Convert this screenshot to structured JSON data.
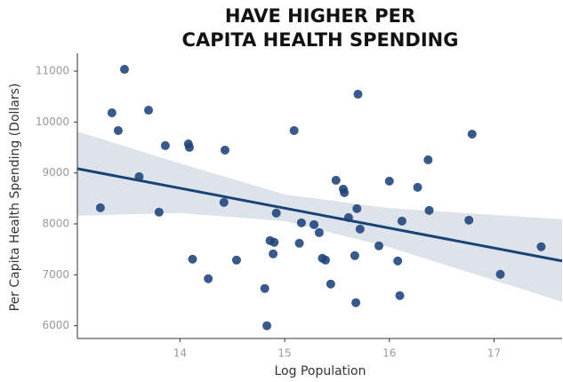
{
  "chart_data": {
    "type": "scatter",
    "title": [
      "HAVE HIGHER PER",
      "CAPITA HEALTH SPENDING"
    ],
    "x_label": "Log Population",
    "y_label": "Per Capita Health Spending (Dollars)",
    "color": "#1e4278",
    "fit_color": "#1a4274",
    "band_color": "#d6dee8",
    "xlim": [
      13.02,
      17.65
    ],
    "ylim": [
      5750,
      11350
    ],
    "xticks": [
      14,
      15,
      16,
      17
    ],
    "yticks": [
      6000,
      7000,
      8000,
      9000,
      10000,
      11000
    ],
    "grid": false,
    "x": [
      13.47,
      13.35,
      13.7,
      13.41,
      13.86,
      14.08,
      14.09,
      14.43,
      13.61,
      13.24,
      13.8,
      14.42,
      14.12,
      14.54,
      14.27,
      14.81,
      14.83,
      14.86,
      14.9,
      14.89,
      14.92,
      15.09,
      15.16,
      15.28,
      15.33,
      15.14,
      15.36,
      15.39,
      15.44,
      15.49,
      15.56,
      15.57,
      15.61,
      15.69,
      15.72,
      15.7,
      15.67,
      15.68,
      15.9,
      16.0,
      16.08,
      16.12,
      16.1,
      16.27,
      16.37,
      16.38,
      16.79,
      16.76,
      17.06,
      17.45
    ],
    "values": [
      11035,
      10181,
      10233,
      9833,
      9537,
      9571,
      9502,
      9449,
      8927,
      8317,
      8230,
      8422,
      7307,
      7289,
      6923,
      6732,
      6000,
      7672,
      7638,
      7411,
      8213,
      9833,
      8021,
      7986,
      7829,
      7620,
      7324,
      7289,
      6819,
      8857,
      8683,
      8613,
      8125,
      8300,
      7899,
      10547,
      7376,
      6453,
      7568,
      8840,
      7272,
      8056,
      6592,
      8718,
      9258,
      8265,
      9763,
      8073,
      7010,
      7551
    ],
    "fit": {
      "x": [
        13.02,
        17.65
      ],
      "values": [
        9084,
        7272
      ]
    },
    "band": {
      "x": [
        13.02,
        14,
        15,
        16,
        17.65
      ],
      "upper": [
        9815,
        9188,
        8578,
        8308,
        8091
      ],
      "lower": [
        8160,
        8213,
        8056,
        7542,
        6470
      ]
    }
  }
}
